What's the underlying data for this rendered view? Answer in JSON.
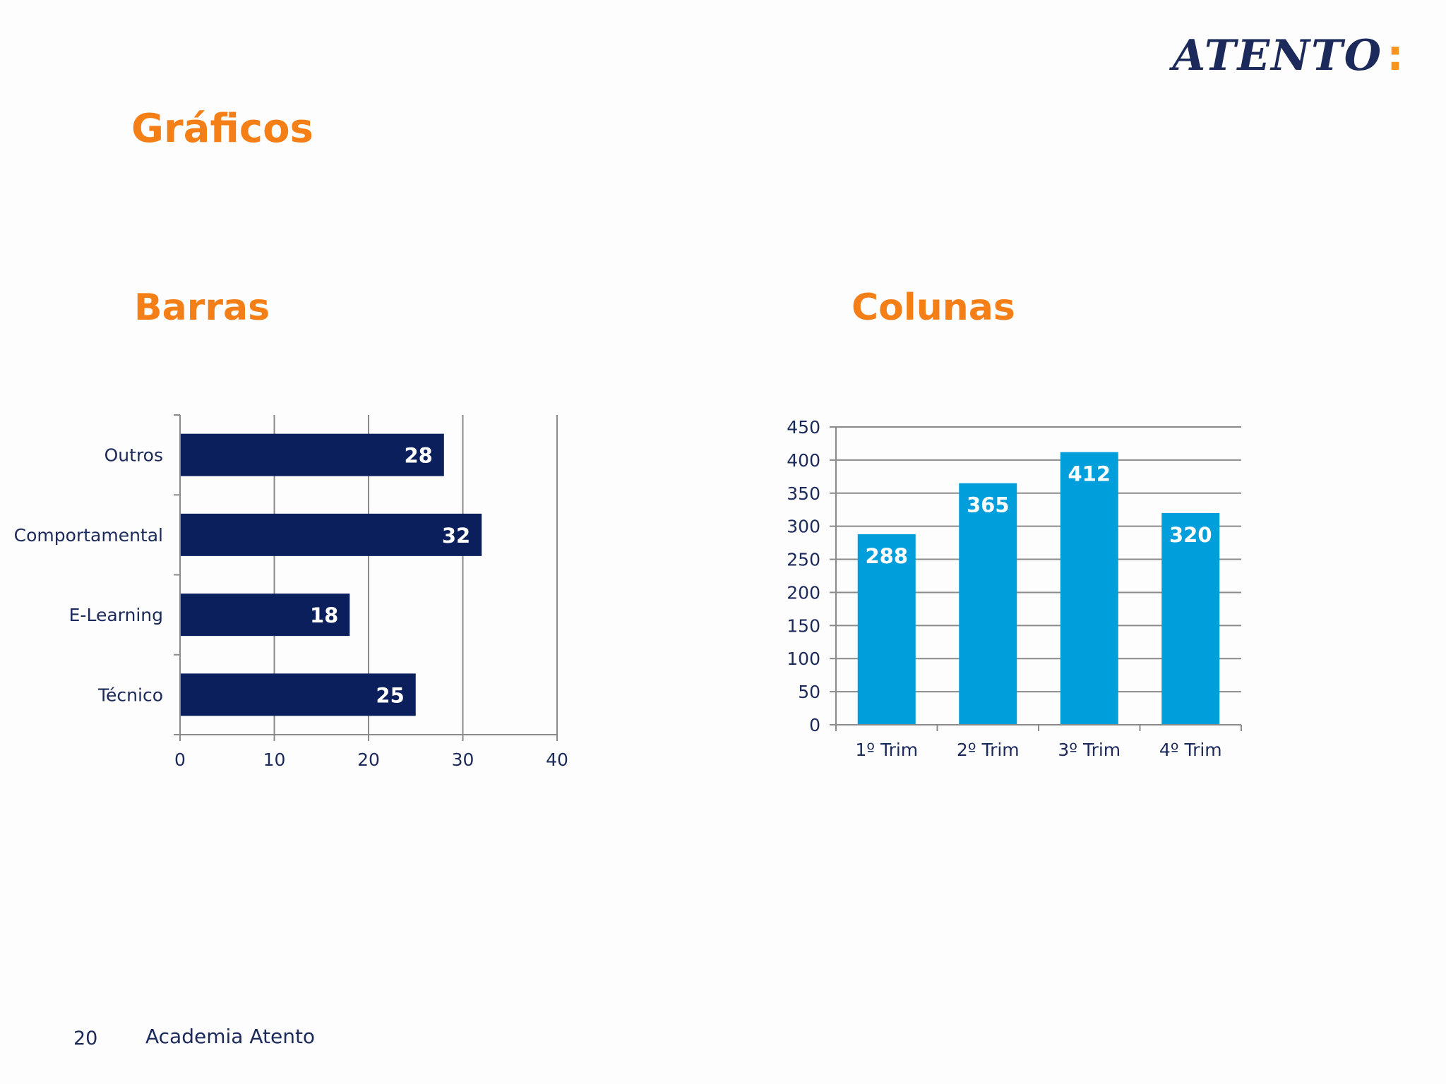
{
  "logo": {
    "text": "ATENTO",
    "colon": ":"
  },
  "title": "Gráficos",
  "footer": {
    "page_number": "20",
    "text": "Academia Atento"
  },
  "colors": {
    "accent": "#f57f17",
    "bar_fill": "#0b1f5c",
    "column_fill": "#009fdb",
    "footer_text": "#1b2a5b"
  },
  "chart_data": [
    {
      "type": "bar",
      "orientation": "horizontal",
      "title": "Barras",
      "categories": [
        "Outros",
        "Comportamental",
        "E-Learning",
        "Técnico"
      ],
      "values": [
        28,
        32,
        18,
        25
      ],
      "xlim": [
        0,
        40
      ],
      "x_ticks": [
        0,
        10,
        20,
        30,
        40
      ],
      "grid": true,
      "data_labels": true
    },
    {
      "type": "bar",
      "orientation": "vertical",
      "title": "Colunas",
      "categories": [
        "1º Trim",
        "2º Trim",
        "3º Trim",
        "4º Trim"
      ],
      "values": [
        288,
        365,
        412,
        320
      ],
      "ylim": [
        0,
        450
      ],
      "y_ticks": [
        0,
        50,
        100,
        150,
        200,
        250,
        300,
        350,
        400,
        450
      ],
      "grid": true,
      "data_labels": true
    }
  ]
}
